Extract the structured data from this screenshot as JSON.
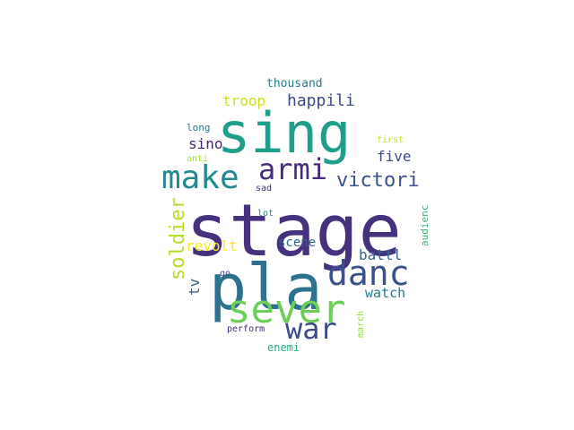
{
  "words": [
    {
      "text": "stage",
      "color": "#46317e"
    },
    {
      "text": "sing",
      "color": "#1f9e89"
    },
    {
      "text": "pla",
      "color": "#2c728e"
    },
    {
      "text": "sever",
      "color": "#6ece58"
    },
    {
      "text": "make",
      "color": "#23898e"
    },
    {
      "text": "armi",
      "color": "#472c7a"
    },
    {
      "text": "danc",
      "color": "#3b518b"
    },
    {
      "text": "war",
      "color": "#3e4a89"
    },
    {
      "text": "victori",
      "color": "#3b528b"
    },
    {
      "text": "soldier",
      "color": "#b5de2b"
    },
    {
      "text": "happili",
      "color": "#3e4989"
    },
    {
      "text": "troop",
      "color": "#d0e11c"
    },
    {
      "text": "five",
      "color": "#3e4c8a"
    },
    {
      "text": "sino",
      "color": "#482677"
    },
    {
      "text": "revolt",
      "color": "#fde725"
    },
    {
      "text": "scene",
      "color": "#31688e"
    },
    {
      "text": "battl",
      "color": "#32648e"
    },
    {
      "text": "tv",
      "color": "#355f8d"
    },
    {
      "text": "watch",
      "color": "#2a788e"
    },
    {
      "text": "thousand",
      "color": "#2a788e"
    },
    {
      "text": "audienc",
      "color": "#35b779"
    },
    {
      "text": "enemi",
      "color": "#29af7f"
    },
    {
      "text": "long",
      "color": "#2c728e"
    },
    {
      "text": "first",
      "color": "#bddf26"
    },
    {
      "text": "anti",
      "color": "#a8db34"
    },
    {
      "text": "sad",
      "color": "#46307e"
    },
    {
      "text": "lot",
      "color": "#21918c"
    },
    {
      "text": "go",
      "color": "#3e4a89"
    },
    {
      "text": "perform",
      "color": "#482475"
    },
    {
      "text": "march",
      "color": "#94d840"
    }
  ]
}
